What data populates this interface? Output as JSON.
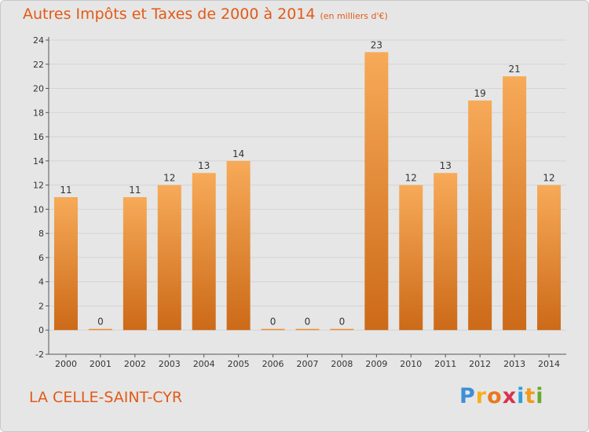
{
  "title": "Autres Impôts et Taxes de 2000 à 2014",
  "unit": "(en milliers d'€)",
  "town": "LA CELLE-SAINT-CYR",
  "logo": {
    "letters": [
      "P",
      "r",
      "o",
      "x",
      "i",
      "t",
      "i"
    ],
    "colors": [
      "#3d8fd6",
      "#f2b21a",
      "#e8781e",
      "#d8324e",
      "#2f9fd8",
      "#f29a1a",
      "#6aaa2a"
    ]
  },
  "colors": {
    "bar": "#ef8e32",
    "bar_light": "#f7aa58",
    "bar_dark": "#cc6a18",
    "title": "#e35a16",
    "grid": "#d4d4d4"
  },
  "chart_data": {
    "type": "bar",
    "categories": [
      "2000",
      "2001",
      "2002",
      "2003",
      "2004",
      "2005",
      "2006",
      "2007",
      "2008",
      "2009",
      "2010",
      "2011",
      "2012",
      "2013",
      "2014"
    ],
    "values": [
      11,
      0,
      11,
      12,
      13,
      14,
      0,
      0,
      0,
      23,
      12,
      13,
      19,
      21,
      12
    ],
    "ylim": [
      -2,
      24
    ],
    "yticks": [
      -2,
      0,
      2,
      4,
      6,
      8,
      10,
      12,
      14,
      16,
      18,
      20,
      22,
      24
    ],
    "grid": true
  }
}
